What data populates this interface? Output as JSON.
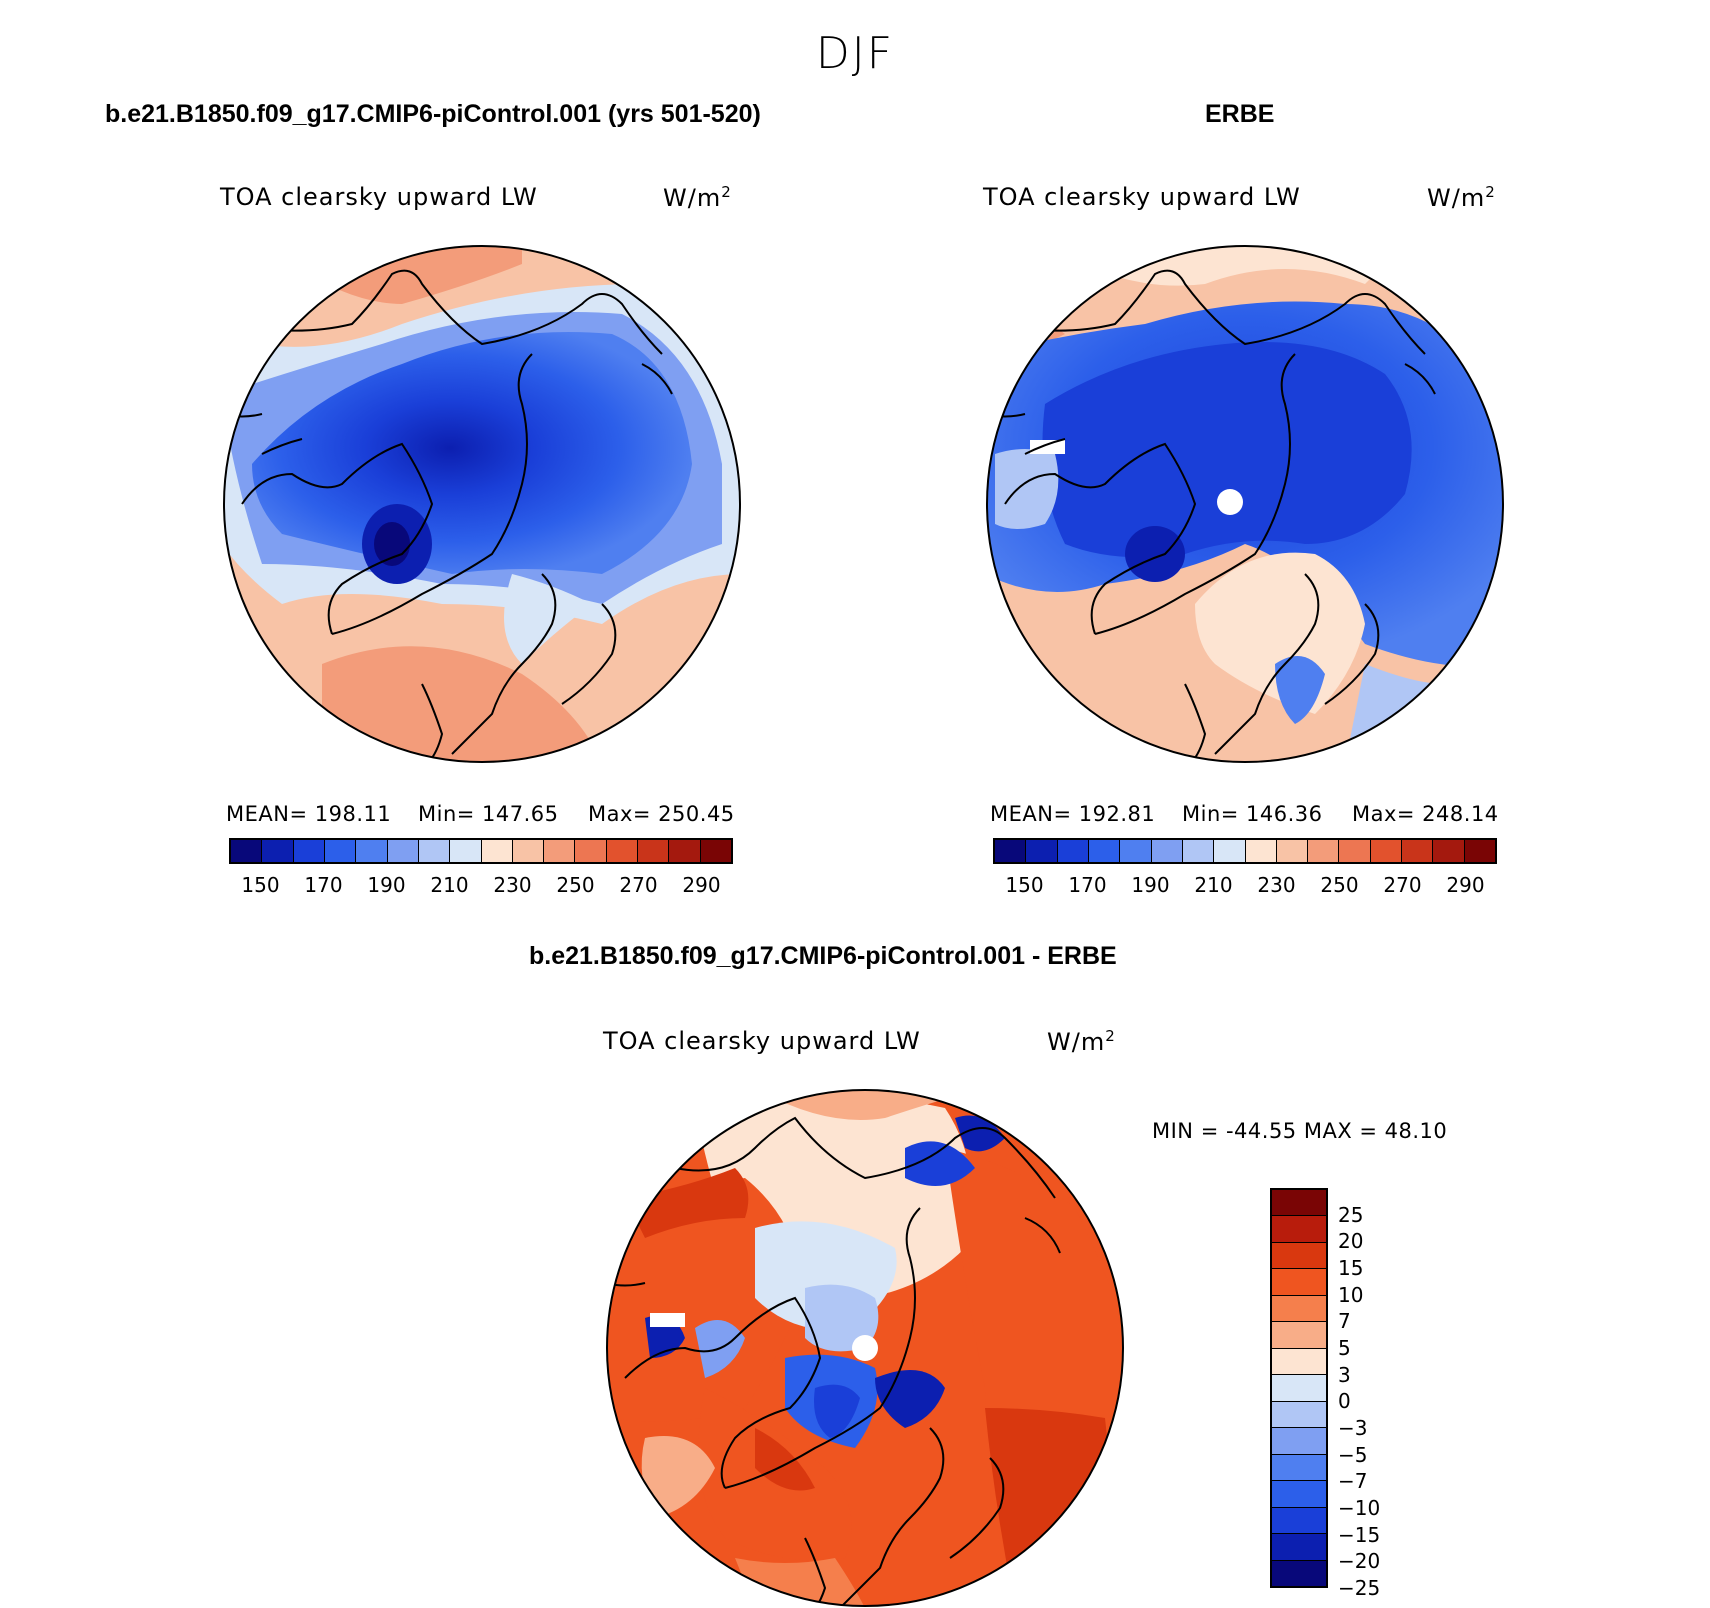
{
  "figure": {
    "title": "DJF"
  },
  "panels": {
    "model": {
      "title": "b.e21.B1850.f09_g17.CMIP6-piControl.001 (yrs 501-520)",
      "variable": "TOA clearsky upward LW",
      "units": "W/m",
      "units_sup": "2",
      "mean": "MEAN=  198.11",
      "min": "Min=  147.65",
      "max": "Max=  250.45"
    },
    "obs": {
      "title": "ERBE",
      "variable": "TOA clearsky upward LW",
      "units": "W/m",
      "units_sup": "2",
      "mean": "MEAN=  192.81",
      "min": "Min=  146.36",
      "max": "Max=  248.14"
    },
    "diff": {
      "title": "b.e21.B1850.f09_g17.CMIP6-piControl.001 - ERBE",
      "variable": "TOA clearsky upward LW",
      "units": "W/m",
      "units_sup": "2",
      "minmax": "MIN = -44.55 MAX =   48.10"
    }
  },
  "colorbars": {
    "absolute": {
      "colors": [
        "#08087a",
        "#0c1fb0",
        "#1a3fd8",
        "#2c5fea",
        "#4f7ff0",
        "#7f9ff2",
        "#b0c6f5",
        "#d8e6f7",
        "#fde4d2",
        "#f8c3a6",
        "#f39c7a",
        "#ed7652",
        "#e2522d",
        "#c9341a",
        "#a4190e",
        "#7a0505"
      ],
      "labels": [
        "150",
        "170",
        "190",
        "210",
        "230",
        "250",
        "270",
        "290"
      ]
    },
    "difference": {
      "colors": [
        "#7a0505",
        "#b81c0c",
        "#d9380f",
        "#ef5520",
        "#f57f4c",
        "#f8ad88",
        "#fde4d2",
        "#d8e6f7",
        "#b0c6f5",
        "#7f9ff2",
        "#4f7ff0",
        "#2c5fea",
        "#1a3fd8",
        "#0c1fb0",
        "#08087a"
      ],
      "labels": [
        "25",
        "20",
        "15",
        "10",
        "7",
        "5",
        "3",
        "0",
        "−3",
        "−5",
        "−7",
        "−10",
        "−15",
        "−20",
        "−25"
      ]
    }
  }
}
